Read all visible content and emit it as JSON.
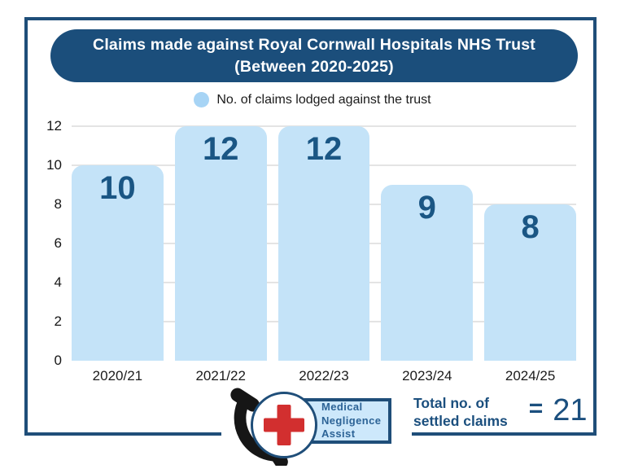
{
  "header": {
    "title_line1": "Claims made against Royal Cornwall Hospitals NHS Trust",
    "title_line2": "(Between 2020-2025)"
  },
  "legend": {
    "label": "No. of claims lodged against the trust"
  },
  "chart_data": {
    "type": "bar",
    "title": "Claims made against Royal Cornwall Hospitals NHS Trust (Between 2020-2025)",
    "categories": [
      "2020/21",
      "2021/22",
      "2022/23",
      "2023/24",
      "2024/25"
    ],
    "values": [
      10,
      12,
      12,
      9,
      8
    ],
    "legend_entries": [
      "No. of claims lodged against the trust"
    ],
    "legend_position": "top",
    "xlabel": "",
    "ylabel": "",
    "ylim": [
      0,
      12
    ],
    "yticks": [
      0,
      2,
      4,
      6,
      8,
      10,
      12
    ],
    "grid": true,
    "bar_value_labels_inside": true
  },
  "footer": {
    "logo": {
      "name": "Medical Negligence Assist",
      "line1": "Medical",
      "line2": "Negligence",
      "line3": "Assist"
    },
    "total": {
      "label_line1": "Total no. of",
      "label_line2": "settled claims",
      "equals": "=",
      "value": "21"
    }
  },
  "colors": {
    "header_bg": "#1B4E7B",
    "card_border": "#1F4E79",
    "bar_fill": "#C4E3F8",
    "legend_dot": "#A7D4F5",
    "value_label": "#1A5684",
    "accent_text": "#1B4F7E",
    "gridline": "#E4E4E4",
    "cross_red": "#D22F2F",
    "logo_box_bg": "#CDE8FB"
  }
}
